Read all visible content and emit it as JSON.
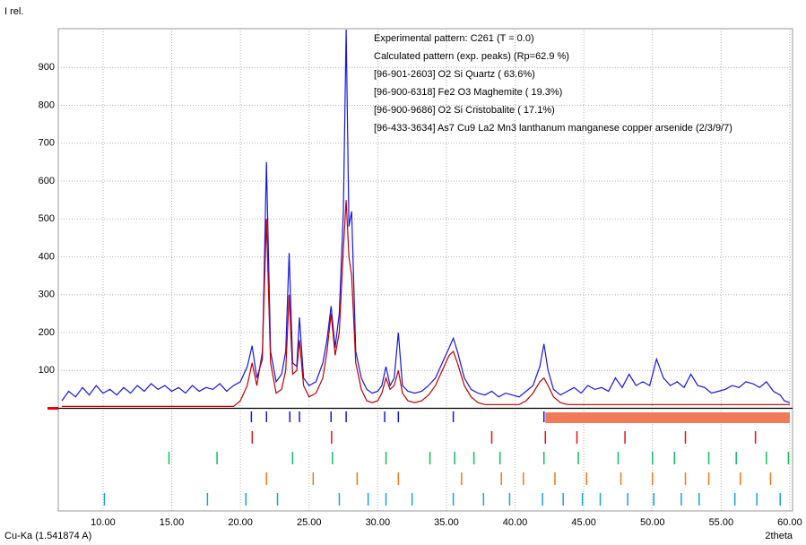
{
  "chart_data": {
    "type": "line",
    "ylabel": "I rel.",
    "xlabel": "2theta",
    "note": "Cu-Ka (1.541874 A)",
    "xlim": [
      6.74,
      60.2
    ],
    "ylim": [
      0,
      1000
    ],
    "xticks": [
      {
        "value": 10,
        "label": "10.00"
      },
      {
        "value": 15,
        "label": "15.00"
      },
      {
        "value": 20,
        "label": "20.00"
      },
      {
        "value": 25,
        "label": "25.00"
      },
      {
        "value": 30,
        "label": "30.00"
      },
      {
        "value": 35,
        "label": "35.00"
      },
      {
        "value": 40,
        "label": "40.00"
      },
      {
        "value": 45,
        "label": "45.00"
      },
      {
        "value": 50,
        "label": "50.00"
      },
      {
        "value": 55,
        "label": "55.00"
      },
      {
        "value": 60,
        "label": "60.00"
      }
    ],
    "yticks": [
      100,
      200,
      300,
      400,
      500,
      600,
      700,
      800,
      900
    ],
    "grid": true,
    "x": [
      7,
      7.5,
      8,
      8.5,
      9,
      9.5,
      10,
      10.5,
      11,
      11.5,
      12,
      12.5,
      13,
      13.5,
      14,
      14.5,
      15,
      15.5,
      16,
      16.5,
      17,
      17.5,
      18,
      18.5,
      19,
      19.5,
      20,
      20.5,
      20.85,
      21.2,
      21.6,
      21.9,
      22.2,
      22.6,
      23,
      23.3,
      23.55,
      23.8,
      24.1,
      24.3,
      24.6,
      25,
      25.5,
      26,
      26.3,
      26.6,
      26.9,
      27.2,
      27.5,
      27.7,
      27.9,
      28.1,
      28.4,
      28.8,
      29.2,
      29.6,
      30,
      30.3,
      30.6,
      30.9,
      31.2,
      31.5,
      31.8,
      32.2,
      32.7,
      33.2,
      33.7,
      34.2,
      34.7,
      35.2,
      35.5,
      35.8,
      36.3,
      36.8,
      37.3,
      37.8,
      38.3,
      38.8,
      39.3,
      39.8,
      40.3,
      40.8,
      41.3,
      41.8,
      42.1,
      42.4,
      42.8,
      43.3,
      43.8,
      44.3,
      44.8,
      45.3,
      45.8,
      46.3,
      46.8,
      47.3,
      47.8,
      48.3,
      48.8,
      49.3,
      49.8,
      50.3,
      50.8,
      51.3,
      51.8,
      52.3,
      52.8,
      53.3,
      53.8,
      54.3,
      54.8,
      55.3,
      55.8,
      56.3,
      56.8,
      57.3,
      57.8,
      58.3,
      58.8,
      59.3,
      59.6,
      60
    ],
    "series": [
      {
        "name": "Experimental pattern: C261 (T = 0.0)",
        "color": "#1515e8",
        "values": [
          20,
          45,
          30,
          55,
          35,
          60,
          40,
          50,
          35,
          55,
          40,
          60,
          45,
          65,
          50,
          60,
          45,
          55,
          40,
          60,
          45,
          55,
          50,
          65,
          45,
          60,
          70,
          110,
          165,
          80,
          130,
          650,
          150,
          70,
          90,
          150,
          410,
          120,
          110,
          240,
          80,
          60,
          70,
          120,
          180,
          270,
          160,
          250,
          520,
          1000,
          480,
          520,
          150,
          80,
          50,
          40,
          45,
          60,
          110,
          60,
          80,
          200,
          60,
          45,
          40,
          45,
          60,
          80,
          120,
          160,
          185,
          150,
          80,
          50,
          40,
          35,
          45,
          30,
          40,
          35,
          30,
          45,
          60,
          110,
          170,
          100,
          50,
          35,
          45,
          55,
          40,
          60,
          50,
          55,
          45,
          80,
          55,
          90,
          60,
          70,
          60,
          130,
          80,
          60,
          70,
          55,
          90,
          60,
          55,
          40,
          45,
          50,
          60,
          55,
          70,
          65,
          55,
          70,
          45,
          35,
          20,
          15
        ]
      },
      {
        "name": "Calculated pattern (exp. peaks) (Rp=62.9 %)",
        "color": "#c00000",
        "values": [
          5,
          5,
          5,
          5,
          5,
          5,
          5,
          5,
          5,
          5,
          5,
          5,
          5,
          5,
          5,
          5,
          5,
          5,
          5,
          5,
          5,
          5,
          5,
          5,
          5,
          5,
          20,
          60,
          120,
          60,
          150,
          500,
          120,
          40,
          50,
          100,
          300,
          90,
          100,
          180,
          60,
          30,
          40,
          80,
          150,
          250,
          140,
          200,
          420,
          550,
          400,
          350,
          120,
          50,
          20,
          15,
          20,
          40,
          80,
          50,
          60,
          100,
          40,
          20,
          15,
          20,
          35,
          60,
          100,
          140,
          150,
          120,
          60,
          30,
          15,
          10,
          10,
          10,
          10,
          10,
          10,
          20,
          40,
          70,
          80,
          60,
          30,
          15,
          10,
          10,
          10,
          10,
          10,
          10,
          10,
          10,
          10,
          10,
          10,
          10,
          10,
          10,
          10,
          10,
          10,
          10,
          10,
          10,
          10,
          10,
          10,
          10,
          10,
          10,
          10,
          10,
          10,
          10,
          10,
          10,
          10,
          10
        ]
      }
    ],
    "peak_positions": [
      20.8,
      21.9,
      23.6,
      24.3,
      26.6,
      27.7,
      30.5,
      31.5,
      35.5,
      42.1
    ],
    "highlight_range": [
      42.2,
      60
    ],
    "phases": [
      {
        "name": "[96-901-2603] O2 Si  Quartz ( 63.6%)",
        "color": "#e81010",
        "positions": [
          20.86,
          26.64,
          38.3,
          42.2,
          44.5,
          48.0,
          52.4,
          57.5
        ]
      },
      {
        "name": "[96-900-6318] Fe2 O3  Maghemite ( 19.3%)",
        "color": "#10c060",
        "positions": [
          14.8,
          18.3,
          23.8,
          26.7,
          30.6,
          33.8,
          35.6,
          37.0,
          38.9,
          42.1,
          44.6,
          47.5,
          50.0,
          51.6,
          54.1,
          56.1,
          58.3,
          59.9
        ]
      },
      {
        "name": "[96-900-9686] O2 Si  Cristobalite ( 17.1%)",
        "color": "#f07818",
        "positions": [
          21.9,
          25.3,
          28.5,
          31.5,
          36.1,
          39.0,
          40.6,
          42.9,
          45.2,
          47.7,
          50.0,
          52.4,
          54.1,
          56.4,
          58.6
        ]
      },
      {
        "name": "[96-433-3634] As7 Cu9 La2 Mn3 lanthanum manganese copper arsenide (2/3/9/7)",
        "color": "#18a0e8",
        "positions": [
          10.1,
          17.6,
          20.4,
          22.7,
          27.2,
          29.3,
          30.6,
          32.5,
          35.5,
          37.7,
          39.6,
          42.0,
          43.5,
          44.9,
          46.2,
          48.2,
          50.1,
          52.1,
          53.4,
          56.0,
          57.6,
          59.3
        ]
      }
    ]
  }
}
